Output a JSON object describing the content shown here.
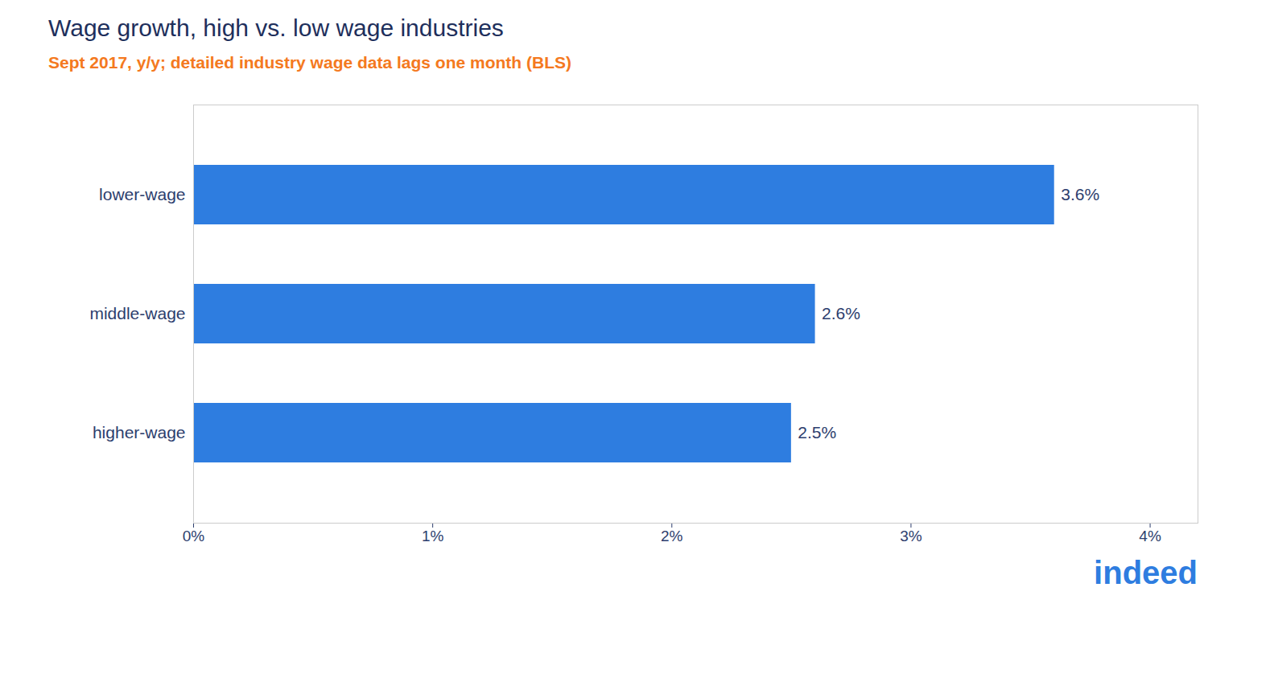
{
  "chart_data": {
    "type": "bar",
    "orientation": "horizontal",
    "title": "Wage growth, high vs. low wage industries",
    "subtitle": "Sept 2017, y/y; detailed industry wage data lags one month (BLS)",
    "categories": [
      "lower-wage",
      "middle-wage",
      "higher-wage"
    ],
    "values": [
      3.6,
      2.6,
      2.5
    ],
    "value_labels": [
      "3.6%",
      "2.6%",
      "2.5%"
    ],
    "data_labels": true,
    "color": "#2e7de0",
    "xlim": [
      0,
      4.2
    ],
    "xticks": [
      {
        "value": 0,
        "label": "0%"
      },
      {
        "value": 1,
        "label": "1%"
      },
      {
        "value": 2,
        "label": "2%"
      },
      {
        "value": 3,
        "label": "3%"
      },
      {
        "value": 4,
        "label": "4%"
      }
    ],
    "grid": false,
    "annotations": [
      "indeed"
    ]
  }
}
